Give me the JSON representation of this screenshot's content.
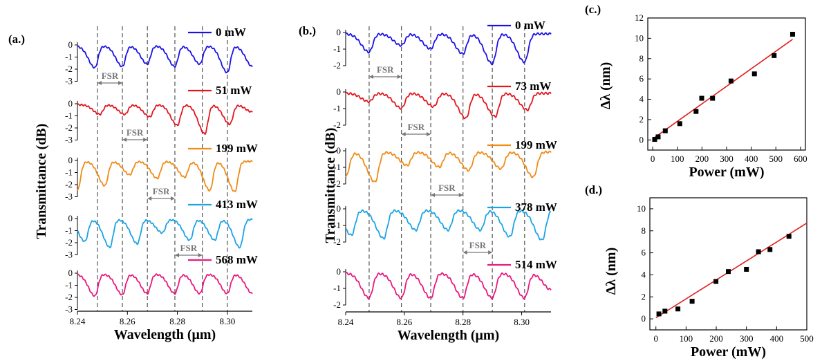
{
  "figure": {
    "colors": {
      "blue": "#1a10e6",
      "red": "#e2151e",
      "orange": "#f08b16",
      "cyan": "#1aa3e6",
      "magenta": "#e8187f",
      "fit": "#e21b1b",
      "fsr": "#777777",
      "dash": "#555555"
    }
  },
  "chart_data": [
    {
      "type": "line",
      "panel_label": "(a.)",
      "xlabel": "Wavelength (μm)",
      "ylabel": "Transmittance (dB)",
      "xlim": [
        8.24,
        8.31
      ],
      "xticks": [
        "8.24",
        "8.26",
        "8.28",
        "8.30"
      ],
      "xtick_values": [
        8.24,
        8.26,
        8.28,
        8.3
      ],
      "ylim": [
        -3,
        0.4
      ],
      "yticks": [
        "0",
        "-1",
        "-2",
        "-3"
      ],
      "ytick_values": [
        0,
        -1,
        -2,
        -3
      ],
      "dashed_x": [
        8.248,
        8.258,
        8.268,
        8.279,
        8.29,
        8.3
      ],
      "series": [
        {
          "name": "0 mW",
          "color": "#1a10e6",
          "dip_x": [
            8.247,
            8.258,
            8.268,
            8.279,
            8.289,
            8.3,
            8.31
          ],
          "dip_depth": [
            1.8,
            1.7,
            1.5,
            1.7,
            1.5,
            2.2,
            1.7
          ]
        },
        {
          "name": "51 mW",
          "color": "#e2151e",
          "dip_x": [
            8.249,
            8.259,
            8.269,
            8.28,
            8.291,
            8.301,
            8.31
          ],
          "dip_depth": [
            0.8,
            0.8,
            1.0,
            1.7,
            2.4,
            1.6,
            0.6
          ]
        },
        {
          "name": "199 mW",
          "color": "#f08b16",
          "dip_x": [
            8.24,
            8.251,
            8.261,
            8.272,
            8.283,
            8.293,
            8.303
          ],
          "dip_depth": [
            2.4,
            2.0,
            1.1,
            1.4,
            1.3,
            2.4,
            2.5
          ]
        },
        {
          "name": "413 mW",
          "color": "#1aa3e6",
          "dip_x": [
            8.243,
            8.253,
            8.264,
            8.274,
            8.285,
            8.295,
            8.305
          ],
          "dip_depth": [
            1.8,
            2.3,
            2.0,
            1.1,
            1.7,
            1.7,
            2.3
          ]
        },
        {
          "name": "568 mW",
          "color": "#e8187f",
          "dip_x": [
            8.247,
            8.258,
            8.268,
            8.279,
            8.289,
            8.3,
            8.31
          ],
          "dip_depth": [
            1.8,
            1.7,
            1.6,
            1.6,
            1.6,
            1.6,
            1.6
          ]
        }
      ],
      "fsr_label": "FSR",
      "fsr_marks": [
        {
          "x": [
            8.248,
            8.258
          ],
          "row": 0
        },
        {
          "x": [
            8.258,
            8.268
          ],
          "row": 1
        },
        {
          "x": [
            8.268,
            8.279
          ],
          "row": 2
        },
        {
          "x": [
            8.279,
            8.29
          ],
          "row": 3
        }
      ]
    },
    {
      "type": "line",
      "panel_label": "(b.)",
      "xlabel": "Wavelength (μm)",
      "ylabel": "Transmittance (dB)",
      "xlim": [
        8.24,
        8.31
      ],
      "xticks": [
        "8.24",
        "8.26",
        "8.28",
        "8.30"
      ],
      "xtick_values": [
        8.24,
        8.26,
        8.28,
        8.3
      ],
      "ylim": [
        -2,
        0.4
      ],
      "yticks": [
        "0",
        "-1",
        "-2"
      ],
      "ytick_values": [
        0,
        -1,
        -2
      ],
      "dashed_x": [
        8.248,
        8.259,
        8.269,
        8.28,
        8.29,
        8.301
      ],
      "series": [
        {
          "name": "0 mW",
          "color": "#1a10e6",
          "dip_x": [
            8.248,
            8.259,
            8.269,
            8.28,
            8.29,
            8.301
          ],
          "dip_depth": [
            1.1,
            0.7,
            0.9,
            1.2,
            1.8,
            1.7
          ]
        },
        {
          "name": "73 mW",
          "color": "#e2151e",
          "dip_x": [
            8.248,
            8.259,
            8.27,
            8.281,
            8.291,
            8.302
          ],
          "dip_depth": [
            0.5,
            0.9,
            0.8,
            1.5,
            1.4,
            1.0
          ]
        },
        {
          "name": "199 mW",
          "color": "#f08b16",
          "dip_x": [
            8.24,
            8.25,
            8.261,
            8.272,
            8.282,
            8.293,
            8.304
          ],
          "dip_depth": [
            1.5,
            1.8,
            0.8,
            0.9,
            1.1,
            1.0,
            1.5
          ]
        },
        {
          "name": "378 mW",
          "color": "#1aa3e6",
          "dip_x": [
            8.242,
            8.253,
            8.264,
            8.275,
            8.286,
            8.296,
            8.307
          ],
          "dip_depth": [
            1.5,
            1.7,
            1.2,
            1.2,
            1.2,
            1.6,
            1.8
          ]
        },
        {
          "name": "514 mW",
          "color": "#e8187f",
          "dip_x": [
            8.248,
            8.259,
            8.269,
            8.28,
            8.29,
            8.301,
            8.31
          ],
          "dip_depth": [
            1.5,
            1.5,
            1.5,
            1.5,
            1.5,
            1.5,
            1.0
          ]
        }
      ],
      "fsr_label": "FSR",
      "fsr_marks": [
        {
          "x": [
            8.248,
            8.259
          ],
          "row": 0
        },
        {
          "x": [
            8.259,
            8.269
          ],
          "row": 1
        },
        {
          "x": [
            8.269,
            8.28
          ],
          "row": 2
        },
        {
          "x": [
            8.28,
            8.29
          ],
          "row": 3
        }
      ]
    },
    {
      "type": "scatter",
      "panel_label": "(c.)",
      "xlabel": "Power (mW)",
      "ylabel": "Δλ (nm)",
      "xlim": [
        -20,
        620
      ],
      "ylim": [
        -1,
        12
      ],
      "xticks": [
        "0",
        "100",
        "200",
        "300",
        "400",
        "500",
        "600"
      ],
      "xtick_values": [
        0,
        100,
        200,
        300,
        400,
        500,
        600
      ],
      "yticks": [
        "0",
        "2",
        "4",
        "6",
        "8",
        "10",
        "12"
      ],
      "ytick_values": [
        0,
        2,
        4,
        6,
        8,
        10,
        12
      ],
      "points": [
        {
          "x": 8,
          "y": 0.05
        },
        {
          "x": 22,
          "y": 0.3
        },
        {
          "x": 51,
          "y": 0.9
        },
        {
          "x": 110,
          "y": 1.6
        },
        {
          "x": 176,
          "y": 2.8
        },
        {
          "x": 199,
          "y": 4.1
        },
        {
          "x": 243,
          "y": 4.1
        },
        {
          "x": 318,
          "y": 5.8
        },
        {
          "x": 413,
          "y": 6.5
        },
        {
          "x": 493,
          "y": 8.3
        },
        {
          "x": 568,
          "y": 10.4
        }
      ],
      "fit": {
        "x": [
          0,
          568
        ],
        "y": [
          0.1,
          9.9
        ]
      }
    },
    {
      "type": "scatter",
      "panel_label": "(d.)",
      "xlabel": "Power (mW)",
      "ylabel": "Δλ (nm)",
      "xlim": [
        -20,
        500
      ],
      "ylim": [
        -1,
        11
      ],
      "xticks": [
        "0",
        "100",
        "200",
        "300",
        "400",
        "500"
      ],
      "xtick_values": [
        0,
        100,
        200,
        300,
        400,
        500
      ],
      "yticks": [
        "0",
        "2",
        "4",
        "6",
        "8",
        "10"
      ],
      "ytick_values": [
        0,
        2,
        4,
        6,
        8,
        10
      ],
      "points": [
        {
          "x": 10,
          "y": 0.45
        },
        {
          "x": 30,
          "y": 0.7
        },
        {
          "x": 73,
          "y": 0.9
        },
        {
          "x": 120,
          "y": 1.6
        },
        {
          "x": 199,
          "y": 3.4
        },
        {
          "x": 240,
          "y": 4.3
        },
        {
          "x": 300,
          "y": 4.5
        },
        {
          "x": 340,
          "y": 6.1
        },
        {
          "x": 378,
          "y": 6.3
        },
        {
          "x": 441,
          "y": 7.5
        }
      ],
      "fit": {
        "x": [
          0,
          500
        ],
        "y": [
          0.1,
          8.7
        ]
      }
    }
  ]
}
